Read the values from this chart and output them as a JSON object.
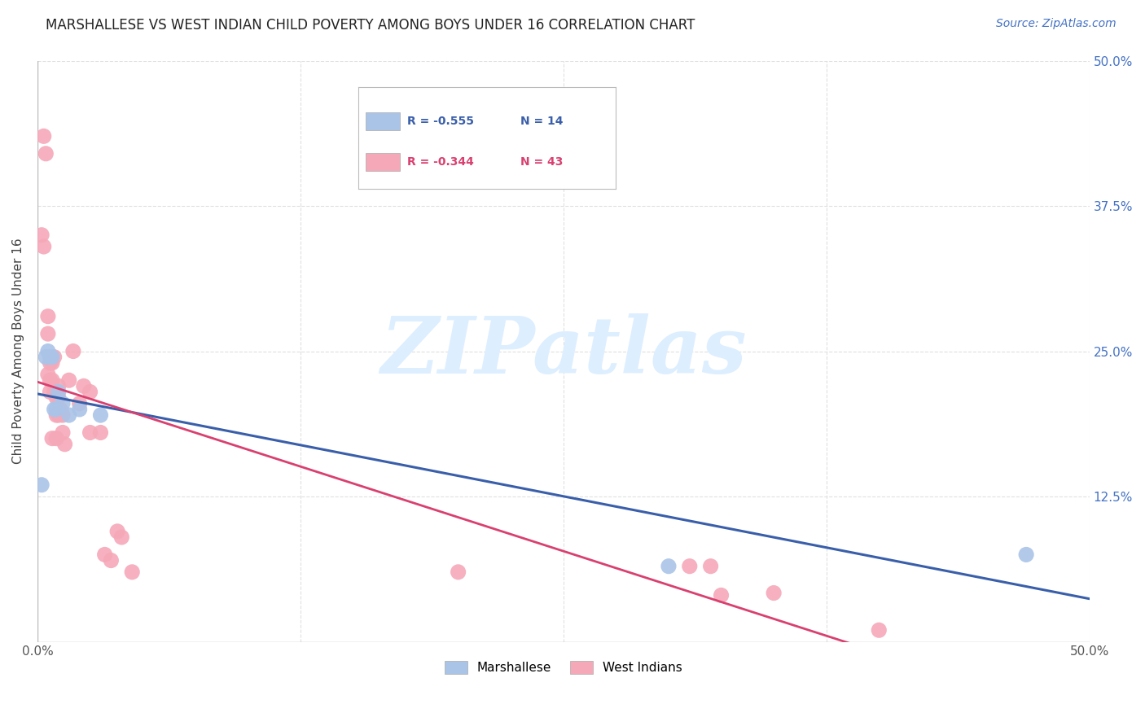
{
  "title": "MARSHALLESE VS WEST INDIAN CHILD POVERTY AMONG BOYS UNDER 16 CORRELATION CHART",
  "source": "Source: ZipAtlas.com",
  "ylabel": "Child Poverty Among Boys Under 16",
  "xlim": [
    0.0,
    0.5
  ],
  "ylim": [
    0.0,
    0.5
  ],
  "xticks": [
    0.0,
    0.125,
    0.25,
    0.375,
    0.5
  ],
  "yticks": [
    0.0,
    0.125,
    0.25,
    0.375,
    0.5
  ],
  "background_color": "#ffffff",
  "grid_color": "#e0e0e0",
  "marshallese_color": "#aac4e8",
  "west_indian_color": "#f5a8b8",
  "marshallese_line_color": "#3a5faa",
  "west_indian_line_color": "#d94070",
  "marshallese_R": "-0.555",
  "marshallese_N": "14",
  "west_indian_R": "-0.344",
  "west_indian_N": "43",
  "marshallese_x": [
    0.002,
    0.004,
    0.005,
    0.006,
    0.007,
    0.008,
    0.009,
    0.01,
    0.012,
    0.015,
    0.02,
    0.03,
    0.3,
    0.47
  ],
  "marshallese_y": [
    0.135,
    0.245,
    0.25,
    0.245,
    0.245,
    0.2,
    0.2,
    0.215,
    0.205,
    0.195,
    0.2,
    0.195,
    0.065,
    0.075
  ],
  "west_indian_x": [
    0.002,
    0.003,
    0.003,
    0.004,
    0.005,
    0.005,
    0.005,
    0.006,
    0.006,
    0.006,
    0.007,
    0.007,
    0.007,
    0.008,
    0.008,
    0.009,
    0.009,
    0.009,
    0.01,
    0.01,
    0.01,
    0.011,
    0.012,
    0.012,
    0.013,
    0.015,
    0.017,
    0.02,
    0.022,
    0.025,
    0.025,
    0.03,
    0.032,
    0.035,
    0.038,
    0.04,
    0.045,
    0.2,
    0.31,
    0.32,
    0.325,
    0.35,
    0.4
  ],
  "west_indian_y": [
    0.35,
    0.435,
    0.34,
    0.42,
    0.28,
    0.265,
    0.23,
    0.24,
    0.225,
    0.215,
    0.24,
    0.225,
    0.175,
    0.245,
    0.215,
    0.21,
    0.195,
    0.175,
    0.22,
    0.21,
    0.195,
    0.2,
    0.195,
    0.18,
    0.17,
    0.225,
    0.25,
    0.205,
    0.22,
    0.215,
    0.18,
    0.18,
    0.075,
    0.07,
    0.095,
    0.09,
    0.06,
    0.06,
    0.065,
    0.065,
    0.04,
    0.042,
    0.01
  ],
  "watermark_text": "ZIPatlas",
  "watermark_color": "#ddeeff",
  "legend_label_marshallese": "Marshallese",
  "legend_label_west_indians": "West Indians",
  "title_fontsize": 12,
  "source_fontsize": 10,
  "axis_label_fontsize": 11,
  "tick_fontsize": 11,
  "legend_fontsize": 10
}
